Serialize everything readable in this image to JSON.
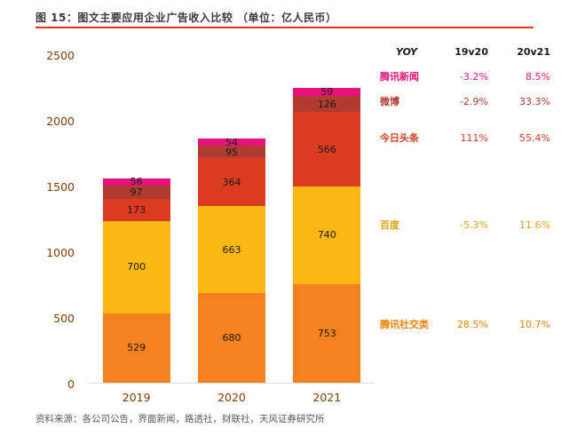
{
  "header": {
    "figure_title": "图 15：图文主要应用企业广告收入比较 （单位：亿人民币）",
    "rule_color": "#E8380D"
  },
  "chart_data": {
    "type": "bar",
    "stacked": true,
    "title": "图文主要应用企业广告收入比较（单位：亿人民币）",
    "categories": [
      "2019",
      "2020",
      "2021"
    ],
    "series": [
      {
        "name": "腾讯社交类",
        "color": "#F5821F",
        "values": [
          529,
          680,
          753
        ]
      },
      {
        "name": "百度",
        "color": "#FBB814",
        "values": [
          700,
          663,
          740
        ]
      },
      {
        "name": "今日头条",
        "color": "#DA3B21",
        "values": [
          173,
          364,
          566
        ]
      },
      {
        "name": "微博",
        "color": "#B03B31",
        "values": [
          97,
          95,
          126
        ]
      },
      {
        "name": "腾讯新闻",
        "color": "#E9117C",
        "values": [
          56,
          54,
          59
        ]
      }
    ],
    "xlabel": "",
    "ylabel": "",
    "ylim": [
      0,
      2500
    ],
    "yticks": [
      0,
      500,
      1000,
      1500,
      2000,
      2500
    ],
    "grid": false,
    "legend_position": "none",
    "value_labels": true,
    "axis_label_color": "#833C00"
  },
  "yoy_table": {
    "header": {
      "label": "YOY",
      "col1": "19v20",
      "col2": "20v21"
    },
    "rows": [
      {
        "name": "腾讯新闻",
        "color": "#E9117C",
        "v1": "-3.2%",
        "v2": "8.5%"
      },
      {
        "name": "微博",
        "color": "#B03B31",
        "v1": "-2.9%",
        "v2": "33.3%"
      },
      {
        "name": "今日头条",
        "color": "#DA3B21",
        "v1": "111%",
        "v2": "55.4%"
      },
      {
        "name": "百度",
        "color": "#DFA414",
        "v1": "-5.3%",
        "v2": "11.6%"
      },
      {
        "name": "腾讯社交类",
        "color": "#EF8200",
        "v1": "28.5%",
        "v2": "10.7%"
      }
    ]
  },
  "footer": {
    "source": "资料来源：各公司公告，界面新闻，路透社，财联社，天风证券研究所"
  }
}
